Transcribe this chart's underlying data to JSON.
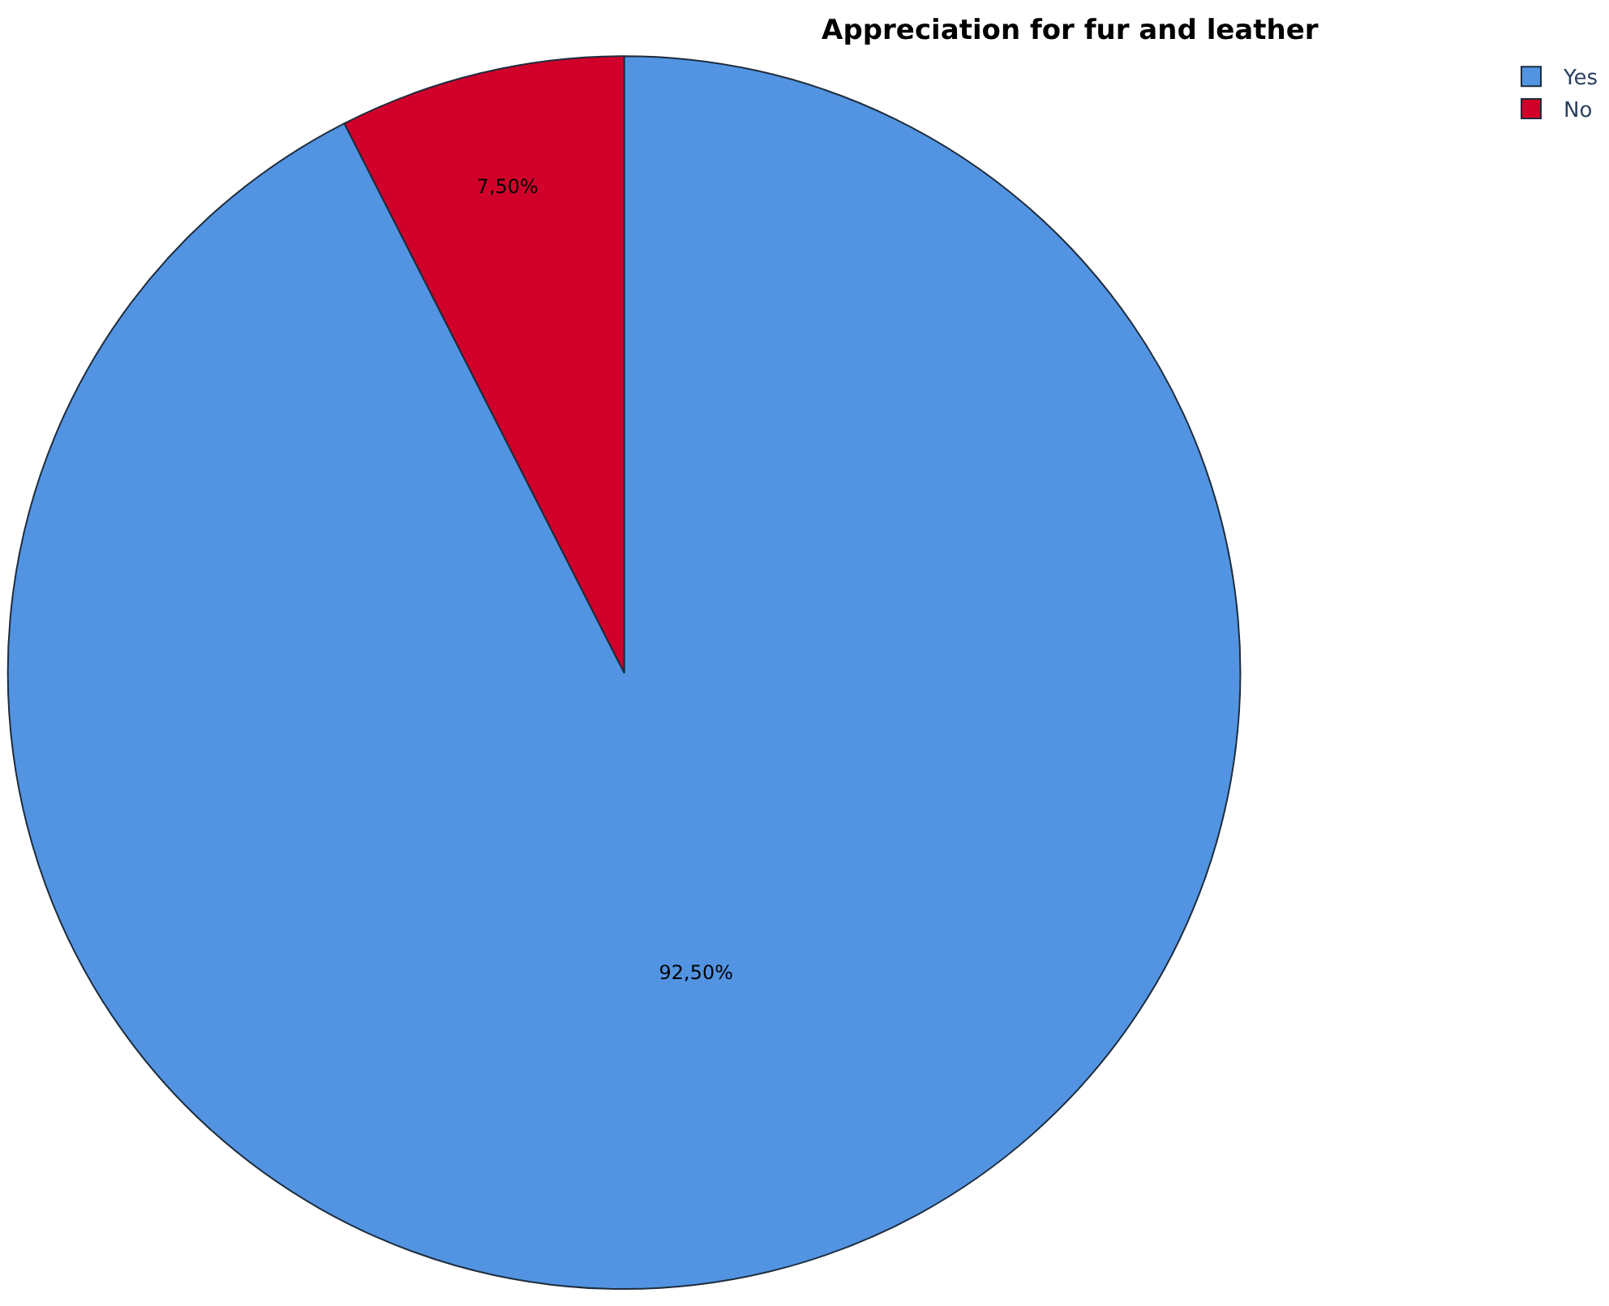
{
  "chart_data": {
    "type": "pie",
    "title": "Appreciation for fur and leather",
    "categories": [
      "Yes",
      "No"
    ],
    "values": [
      92.5,
      7.5
    ],
    "colors": [
      "#5294e2",
      "#d0002a"
    ],
    "value_labels": [
      "92,50%",
      "7,50%"
    ],
    "legend": "top right"
  }
}
